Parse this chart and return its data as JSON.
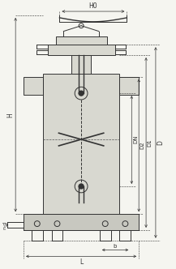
{
  "bg_color": "#f5f5f0",
  "line_color": "#333333",
  "fill_color": "#d8d8d0",
  "fig_width": 2.17,
  "fig_height": 3.32,
  "dpi": 100,
  "labels": {
    "H0": "H0",
    "H": "H",
    "DN": "DN",
    "D2": "D2",
    "D1": "D1",
    "D": "D",
    "L": "L",
    "b": "b",
    "nd": "n-d"
  }
}
